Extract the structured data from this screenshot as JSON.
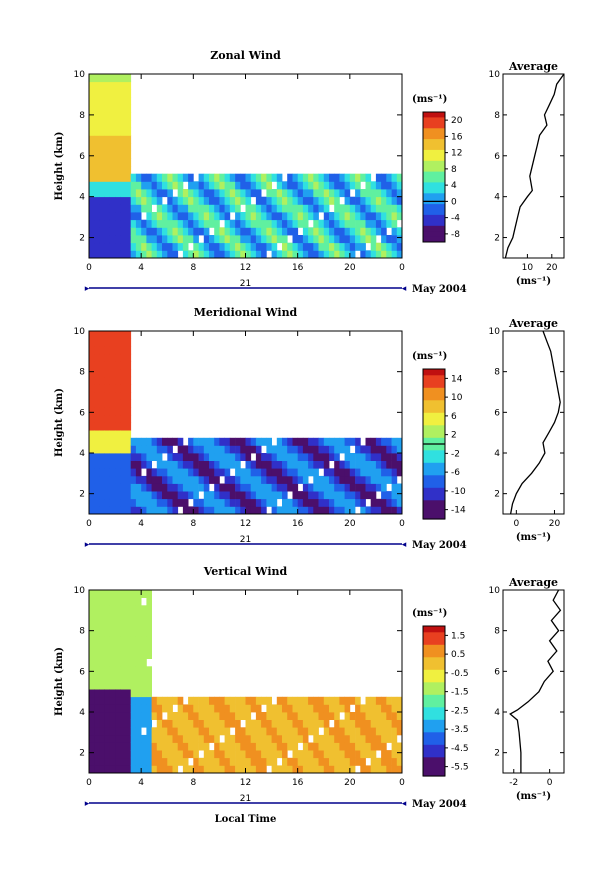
{
  "chart_data": [
    {
      "type": "heatmap",
      "title": "Zonal Wind",
      "ylabel": "Height (km)",
      "xticks": [
        "0",
        "4",
        "8",
        "12",
        "16",
        "20",
        "0"
      ],
      "yticks": [
        "2",
        "4",
        "6",
        "8",
        "10"
      ],
      "xlim": [
        0,
        24
      ],
      "ylim": [
        1,
        10
      ],
      "colorbar": {
        "unit": "(ms⁻¹)",
        "ticks": [
          "20",
          "16",
          "12",
          "8",
          "4",
          "0",
          "-4",
          "-8"
        ],
        "range": [
          -10,
          22
        ],
        "zero_line": 0
      },
      "profile": {
        "title": "Average",
        "xlabel": "(ms⁻¹)",
        "xticks": [
          "10",
          "20"
        ],
        "xlim": [
          0,
          25
        ],
        "yticks": [
          "2",
          "4",
          "6",
          "8",
          "10"
        ],
        "points": [
          [
            1,
            1
          ],
          [
            1.5,
            2
          ],
          [
            2,
            4
          ],
          [
            2.5,
            5
          ],
          [
            3,
            6
          ],
          [
            3.5,
            7
          ],
          [
            4,
            10
          ],
          [
            4.3,
            12
          ],
          [
            5,
            11
          ],
          [
            6,
            13
          ],
          [
            6.5,
            14
          ],
          [
            7,
            15
          ],
          [
            7.5,
            18
          ],
          [
            8,
            17
          ],
          [
            8.5,
            19
          ],
          [
            9,
            21
          ],
          [
            9.5,
            22
          ],
          [
            10,
            25
          ]
        ]
      },
      "date_axis": {
        "day": "21",
        "label": "May 2004"
      }
    },
    {
      "type": "heatmap",
      "title": "Meridional Wind",
      "ylabel": "Height (km)",
      "xticks": [
        "0",
        "4",
        "8",
        "12",
        "16",
        "20",
        "0"
      ],
      "yticks": [
        "2",
        "4",
        "6",
        "8",
        "10"
      ],
      "xlim": [
        0,
        24
      ],
      "ylim": [
        1,
        10
      ],
      "colorbar": {
        "unit": "(ms⁻¹)",
        "ticks": [
          "14",
          "10",
          "6",
          "2",
          "-2",
          "-6",
          "-10",
          "-14"
        ],
        "range": [
          -16,
          16
        ],
        "zero_line": 0
      },
      "profile": {
        "title": "Average",
        "xlabel": "(ms⁻¹)",
        "xticks": [
          "0",
          "20"
        ],
        "xlim": [
          -7,
          25
        ],
        "yticks": [
          "2",
          "4",
          "6",
          "8",
          "10"
        ],
        "points": [
          [
            1,
            -3
          ],
          [
            1.5,
            -2
          ],
          [
            2,
            0
          ],
          [
            2.5,
            3
          ],
          [
            3,
            8
          ],
          [
            3.5,
            12
          ],
          [
            4,
            15
          ],
          [
            4.5,
            14
          ],
          [
            5,
            17
          ],
          [
            5.5,
            20
          ],
          [
            6,
            22
          ],
          [
            6.5,
            23
          ],
          [
            7,
            22
          ],
          [
            7.5,
            21
          ],
          [
            8,
            20
          ],
          [
            8.5,
            19
          ],
          [
            9,
            18
          ],
          [
            9.5,
            16
          ],
          [
            10,
            14
          ]
        ]
      },
      "date_axis": {
        "day": "21",
        "label": "May 2004"
      }
    },
    {
      "type": "heatmap",
      "title": "Vertical Wind",
      "ylabel": "Height (km)",
      "xlabel": "Local Time",
      "xticks": [
        "0",
        "4",
        "8",
        "12",
        "16",
        "20",
        "0"
      ],
      "yticks": [
        "2",
        "4",
        "6",
        "8",
        "10"
      ],
      "xlim": [
        0,
        24
      ],
      "ylim": [
        1,
        10
      ],
      "colorbar": {
        "unit": "(ms⁻¹)",
        "ticks": [
          "1.5",
          "0.5",
          "-0.5",
          "-1.5",
          "-2.5",
          "-3.5",
          "-4.5",
          "-5.5"
        ],
        "range": [
          -6,
          2
        ],
        "zero_line": null
      },
      "profile": {
        "title": "Average",
        "xlabel": "(ms⁻¹)",
        "xticks": [
          "-2",
          "0"
        ],
        "xlim": [
          -2.6,
          0.8
        ],
        "yticks": [
          "2",
          "4",
          "6",
          "8",
          "10"
        ],
        "points": [
          [
            1,
            -1.6
          ],
          [
            2,
            -1.6
          ],
          [
            3,
            -1.7
          ],
          [
            3.6,
            -1.8
          ],
          [
            3.9,
            -2.2
          ],
          [
            4.1,
            -1.8
          ],
          [
            4.5,
            -1.2
          ],
          [
            5,
            -0.6
          ],
          [
            5.5,
            -0.3
          ],
          [
            6,
            0.2
          ],
          [
            6.5,
            -0.1
          ],
          [
            7,
            0.4
          ],
          [
            7.5,
            0
          ],
          [
            8,
            0.5
          ],
          [
            8.5,
            0.1
          ],
          [
            9,
            0.6
          ],
          [
            9.5,
            0.2
          ],
          [
            10,
            0.5
          ]
        ]
      },
      "date_axis": {
        "day": "21",
        "label": "May 2004"
      }
    }
  ]
}
